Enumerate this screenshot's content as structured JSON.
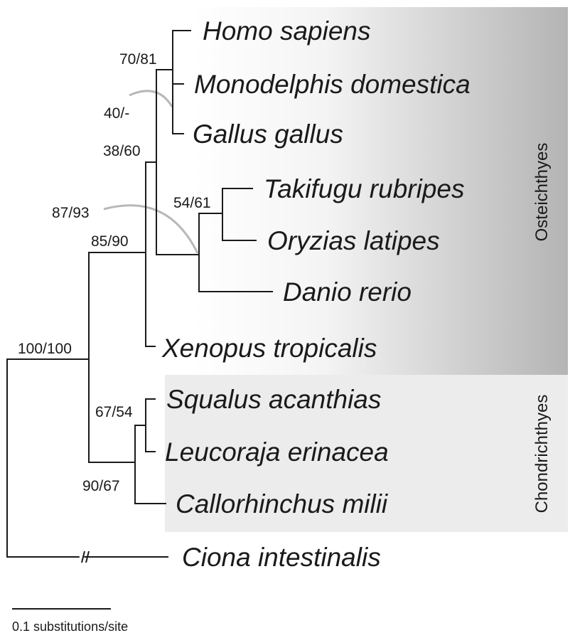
{
  "taxa": {
    "homo": "Homo sapiens",
    "monodelphis": "Monodelphis domestica",
    "gallus": "Gallus gallus",
    "takifugu": "Takifugu rubripes",
    "oryzias": "Oryzias latipes",
    "danio": "Danio rerio",
    "xenopus": "Xenopus tropicalis",
    "squalus": "Squalus acanthias",
    "leucoraja": "Leucoraja erinacea",
    "callorhinchus": "Callorhinchus milii",
    "ciona": "Ciona intestinalis"
  },
  "support": {
    "amniotes": "70/81",
    "mammal_bird_alt": "40/-",
    "tetrapods": "38/60",
    "acanthopterygii": "54/61",
    "teleosts": "87/93",
    "osteichthyes": "85/90",
    "root": "100/100",
    "sharks_rays": "67/54",
    "chondrichthyes": "90/67"
  },
  "clades": {
    "osteichthyes": "Osteichthyes",
    "chondrichthyes": "Chondrichthyes"
  },
  "colors": {
    "osteichthyes_gradient": [
      "#ffffff",
      "#b4b4b4"
    ],
    "chondrichthyes_fill": "#ececec",
    "branch": "#1a1a1a",
    "leader": "#b8b8b8"
  },
  "scale": {
    "label": "0.1 substitutions/site"
  }
}
